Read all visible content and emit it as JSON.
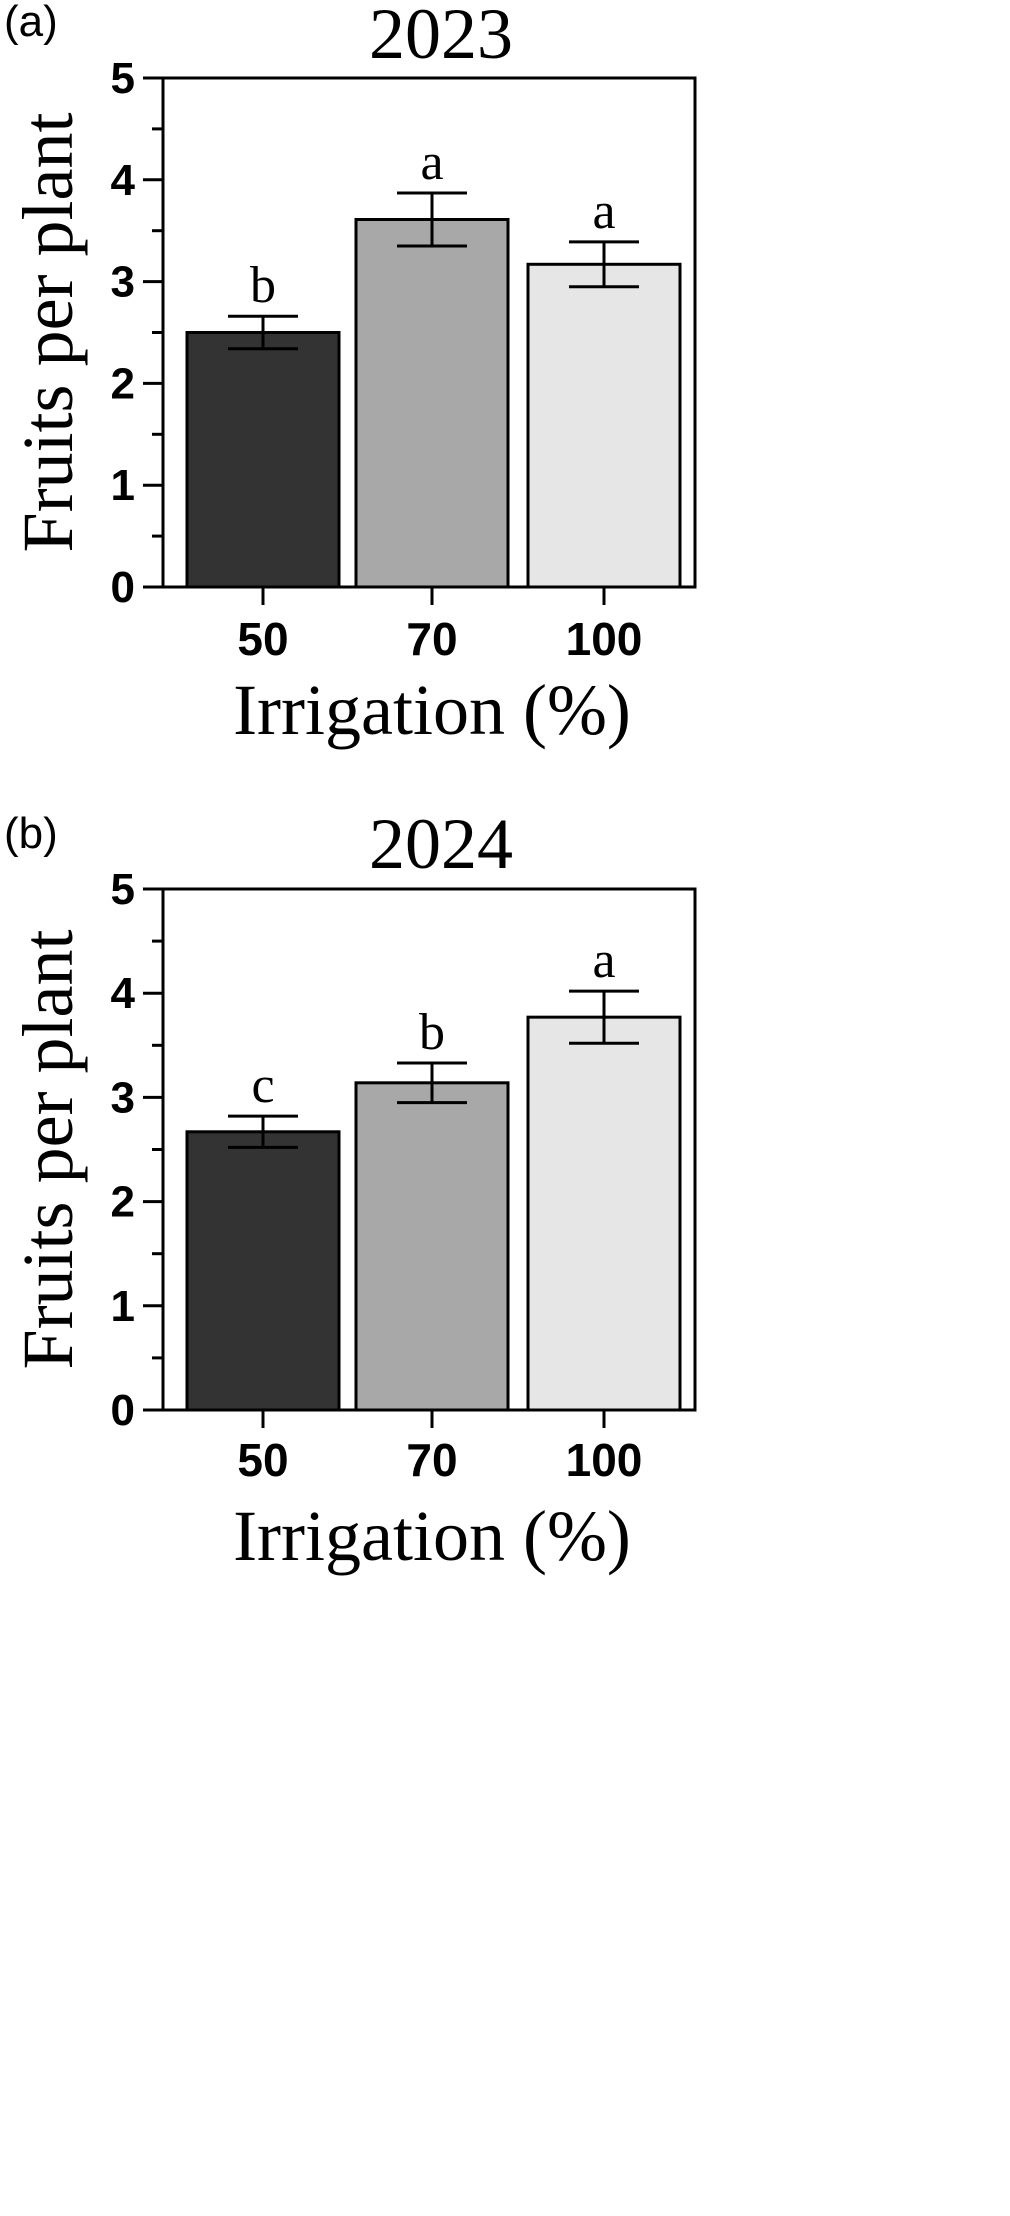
{
  "chart_data": [
    {
      "type": "bar",
      "panel_label": "(a)",
      "title": "2023",
      "xlabel": "Irrigation (%)",
      "ylabel": "Fruits per plant",
      "categories": [
        "50",
        "70",
        "100"
      ],
      "values": [
        2.5,
        3.61,
        3.17
      ],
      "errors": [
        0.16,
        0.26,
        0.22
      ],
      "significance": [
        "b",
        "a",
        "a"
      ],
      "bar_colors": [
        "#333333",
        "#a8a8a8",
        "#e6e6e6"
      ],
      "ylim": [
        0,
        5
      ],
      "yticks": [
        "0",
        "1",
        "2",
        "3",
        "4",
        "5"
      ],
      "grid": false,
      "legend": "none"
    },
    {
      "type": "bar",
      "panel_label": "(b)",
      "title": "2024",
      "xlabel": "Irrigation (%)",
      "ylabel": "Fruits per plant",
      "categories": [
        "50",
        "70",
        "100"
      ],
      "values": [
        2.67,
        3.14,
        3.77
      ],
      "errors": [
        0.15,
        0.19,
        0.25
      ],
      "significance": [
        "c",
        "b",
        "a"
      ],
      "bar_colors": [
        "#333333",
        "#a8a8a8",
        "#e6e6e6"
      ],
      "ylim": [
        0,
        5
      ],
      "yticks": [
        "0",
        "1",
        "2",
        "3",
        "4",
        "5"
      ],
      "grid": false,
      "legend": "none"
    }
  ]
}
